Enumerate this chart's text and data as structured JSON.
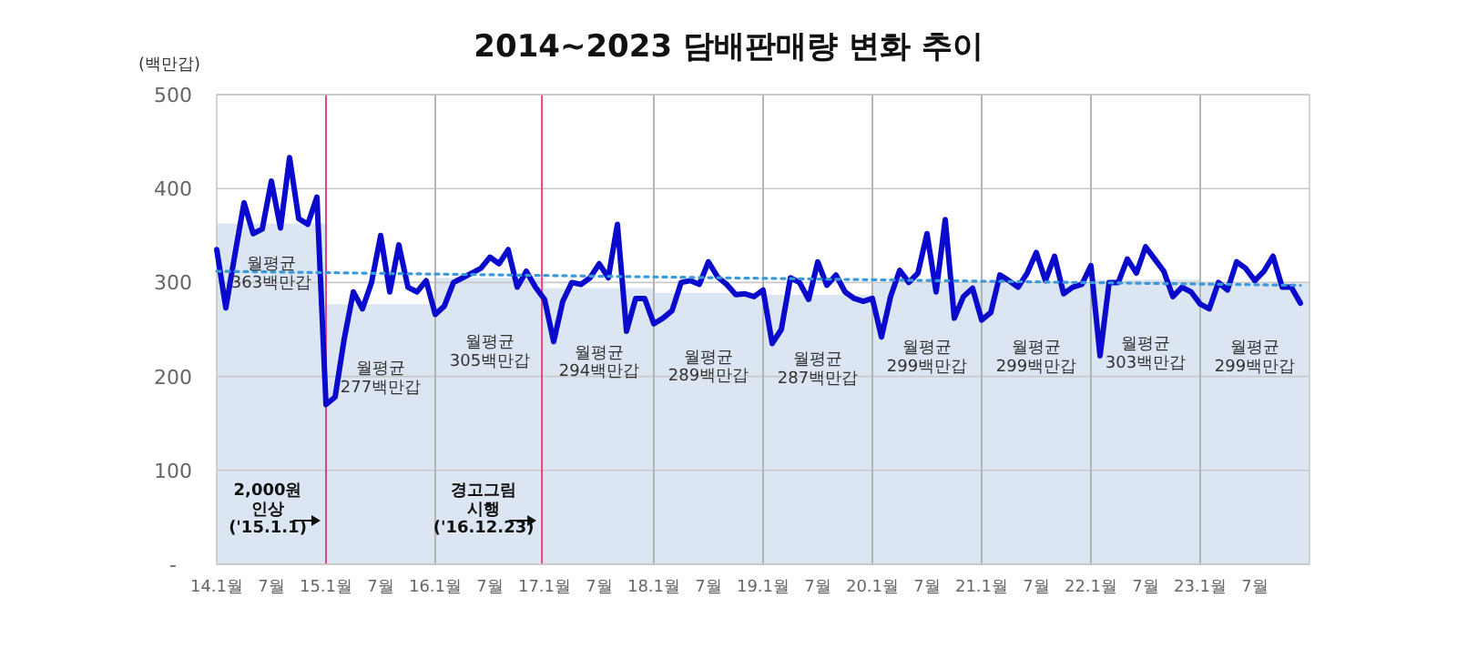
{
  "chart_data": {
    "type": "line",
    "title": "2014~2023 담배판매량 변화 추이",
    "ylabel": "(백만갑)",
    "xlim": [
      "2014-01",
      "2024-01"
    ],
    "xticks": [
      {
        "value": "2014-01",
        "label": "14.1월"
      },
      {
        "value": "2014-07",
        "label": "7월"
      },
      {
        "value": "2015-01",
        "label": "15.1월"
      },
      {
        "value": "2015-07",
        "label": "7월"
      },
      {
        "value": "2016-01",
        "label": "16.1월"
      },
      {
        "value": "2016-07",
        "label": "7월"
      },
      {
        "value": "2017-01",
        "label": "17.1월"
      },
      {
        "value": "2017-07",
        "label": "7월"
      },
      {
        "value": "2018-01",
        "label": "18.1월"
      },
      {
        "value": "2018-07",
        "label": "7월"
      },
      {
        "value": "2019-01",
        "label": "19.1월"
      },
      {
        "value": "2019-07",
        "label": "7월"
      },
      {
        "value": "2020-01",
        "label": "20.1월"
      },
      {
        "value": "2020-07",
        "label": "7월"
      },
      {
        "value": "2021-01",
        "label": "21.1월"
      },
      {
        "value": "2021-07",
        "label": "7월"
      },
      {
        "value": "2022-01",
        "label": "22.1월"
      },
      {
        "value": "2022-07",
        "label": "7월"
      },
      {
        "value": "2023-01",
        "label": "23.1월"
      },
      {
        "value": "2023-07",
        "label": "7월"
      }
    ],
    "ylim": [
      0,
      500
    ],
    "yticks": [
      {
        "value": 0,
        "label": "-"
      },
      100,
      200,
      300,
      400,
      500
    ],
    "grid": "y",
    "series": [
      {
        "type": "area",
        "color": "#dce6f2",
        "x": [
          "2014-01",
          "2015-01",
          "2015-01",
          "2016-01",
          "2016-01",
          "2017-01",
          "2017-01",
          "2018-01",
          "2018-01",
          "2019-01",
          "2019-01",
          "2020-01",
          "2020-01",
          "2021-01",
          "2021-01",
          "2022-01",
          "2022-01",
          "2023-01",
          "2023-01",
          "2024-01"
        ],
        "values": [
          363,
          363,
          277,
          277,
          305,
          305,
          294,
          294,
          289,
          289,
          287,
          287,
          299,
          299,
          299,
          299,
          303,
          303,
          299,
          299
        ]
      },
      {
        "color": "#0a0acc",
        "x": [
          "2014-01",
          "2014-02",
          "2014-03",
          "2014-04",
          "2014-05",
          "2014-06",
          "2014-07",
          "2014-08",
          "2014-09",
          "2014-10",
          "2014-11",
          "2014-12",
          "2015-01",
          "2015-02",
          "2015-03",
          "2015-04",
          "2015-05",
          "2015-06",
          "2015-07",
          "2015-08",
          "2015-09",
          "2015-10",
          "2015-11",
          "2015-12",
          "2016-01",
          "2016-02",
          "2016-03",
          "2016-04",
          "2016-05",
          "2016-06",
          "2016-07",
          "2016-08",
          "2016-09",
          "2016-10",
          "2016-11",
          "2016-12",
          "2017-01",
          "2017-02",
          "2017-03",
          "2017-04",
          "2017-05",
          "2017-06",
          "2017-07",
          "2017-08",
          "2017-09",
          "2017-10",
          "2017-11",
          "2017-12",
          "2018-01",
          "2018-02",
          "2018-03",
          "2018-04",
          "2018-05",
          "2018-06",
          "2018-07",
          "2018-08",
          "2018-09",
          "2018-10",
          "2018-11",
          "2018-12",
          "2019-01",
          "2019-02",
          "2019-03",
          "2019-04",
          "2019-05",
          "2019-06",
          "2019-07",
          "2019-08",
          "2019-09",
          "2019-10",
          "2019-11",
          "2019-12",
          "2020-01",
          "2020-02",
          "2020-03",
          "2020-04",
          "2020-05",
          "2020-06",
          "2020-07",
          "2020-08",
          "2020-09",
          "2020-10",
          "2020-11",
          "2020-12",
          "2021-01",
          "2021-02",
          "2021-03",
          "2021-04",
          "2021-05",
          "2021-06",
          "2021-07",
          "2021-08",
          "2021-09",
          "2021-10",
          "2021-11",
          "2021-12",
          "2022-01",
          "2022-02",
          "2022-03",
          "2022-04",
          "2022-05",
          "2022-06",
          "2022-07",
          "2022-08",
          "2022-09",
          "2022-10",
          "2022-11",
          "2022-12",
          "2023-01",
          "2023-02",
          "2023-03",
          "2023-04",
          "2023-05",
          "2023-06",
          "2023-07",
          "2023-08",
          "2023-09",
          "2023-10",
          "2023-11",
          "2023-12"
        ],
        "values": [
          335,
          273,
          330,
          385,
          352,
          357,
          408,
          358,
          433,
          368,
          362,
          391,
          170,
          178,
          240,
          290,
          272,
          300,
          350,
          290,
          340,
          295,
          290,
          302,
          266,
          275,
          300,
          305,
          310,
          315,
          327,
          320,
          335,
          295,
          312,
          295,
          282,
          237,
          280,
          300,
          298,
          305,
          320,
          305,
          362,
          248,
          283,
          283,
          256,
          262,
          270,
          300,
          302,
          298,
          322,
          306,
          298,
          287,
          288,
          285,
          292,
          235,
          250,
          305,
          300,
          282,
          322,
          297,
          308,
          290,
          283,
          280,
          283,
          242,
          285,
          313,
          300,
          310,
          352,
          290,
          367,
          262,
          285,
          294,
          260,
          268,
          308,
          302,
          295,
          310,
          332,
          302,
          328,
          288,
          295,
          298,
          318,
          222,
          300,
          300,
          325,
          310,
          338,
          325,
          312,
          285,
          295,
          290,
          277,
          272,
          300,
          292,
          322,
          315,
          302,
          312,
          328,
          295,
          295,
          278
        ]
      },
      {
        "color": "#3a9ad9",
        "line_style": "dotted",
        "x": [
          "2014-01",
          "2023-12"
        ],
        "values": [
          312,
          297
        ]
      }
    ],
    "ref_lines": [
      {
        "axis": "x",
        "value": "2015-01-01",
        "label": "2,000원\n인상\n('15.1.1)",
        "color": "#e0457b"
      },
      {
        "axis": "x",
        "value": "2016-12-23",
        "label": "경고그림\n시행\n('16.12.23)",
        "color": "#e0457b"
      },
      {
        "axis": "x",
        "value": "2016-01",
        "color": "#b4b4b4"
      },
      {
        "axis": "x",
        "value": "2018-01",
        "color": "#b4b4b4"
      },
      {
        "axis": "x",
        "value": "2019-01",
        "color": "#b4b4b4"
      },
      {
        "axis": "x",
        "value": "2020-01",
        "color": "#b4b4b4"
      },
      {
        "axis": "x",
        "value": "2021-01",
        "color": "#b4b4b4"
      },
      {
        "axis": "x",
        "value": "2022-01",
        "color": "#b4b4b4"
      },
      {
        "axis": "x",
        "value": "2023-01",
        "color": "#b4b4b4"
      }
    ],
    "annotations": [
      "월평균\n363백만갑",
      "월평균\n277백만갑",
      "월평균\n305백만갑",
      "월평균\n294백만갑",
      "월평균\n289백만갑",
      "월평균\n287백만갑",
      "월평균\n299백만갑",
      "월평균\n299백만갑",
      "월평균\n303백만갑",
      "월평균\n299백만갑"
    ]
  }
}
